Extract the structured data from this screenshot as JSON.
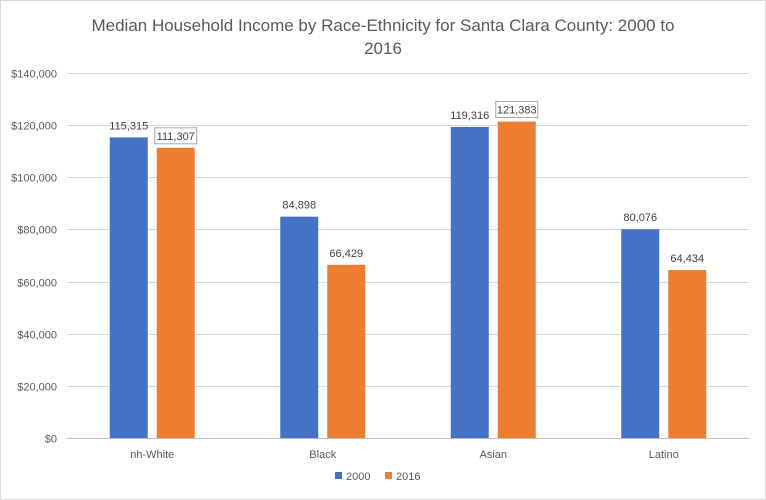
{
  "chart_data": {
    "type": "bar",
    "title_lines": [
      "Median Household Income by Race-Ethnicity for Santa Clara County: 2000 to",
      "2016"
    ],
    "xlabel": "",
    "ylabel": "",
    "categories": [
      "nh-White",
      "Black",
      "Asian",
      "Latino"
    ],
    "series": [
      {
        "name": "2000",
        "color": "#4472C4",
        "values": [
          115315,
          84898,
          119316,
          80076
        ],
        "labels": [
          "115,315",
          "84,898",
          "119,316",
          "80,076"
        ]
      },
      {
        "name": "2016",
        "color": "#ED7D31",
        "values": [
          111307,
          66429,
          121383,
          64434
        ],
        "labels": [
          "111,307",
          "66,429",
          "121,383",
          "64,434"
        ]
      }
    ],
    "ylim": [
      0,
      140000
    ],
    "yticks": [
      0,
      20000,
      40000,
      60000,
      80000,
      100000,
      120000,
      140000
    ],
    "ytick_labels": [
      "$0",
      "$20,000",
      "$40,000",
      "$60,000",
      "$80,000",
      "$100,000",
      "$120,000",
      "$140,000"
    ],
    "boxed_labels": [
      "111,307",
      "121,383"
    ],
    "grid": true,
    "legend_position": "bottom"
  }
}
